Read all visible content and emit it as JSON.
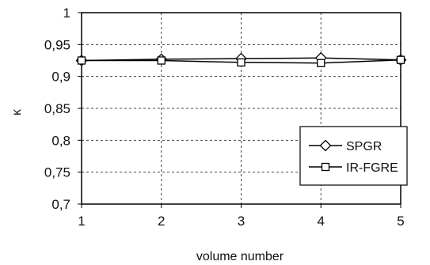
{
  "chart_data": {
    "type": "line",
    "x": [
      1,
      2,
      3,
      4,
      5
    ],
    "xlabel": "volume number",
    "ylabel": "κ",
    "xlim": [
      1,
      5
    ],
    "ylim": [
      0.7,
      1
    ],
    "x_ticks": [
      "1",
      "2",
      "3",
      "4",
      "5"
    ],
    "y_ticks": [
      "0,7",
      "0,75",
      "0,8",
      "0,85",
      "0,9",
      "0,95",
      "1"
    ],
    "grid": true,
    "legend_position": "right",
    "series": [
      {
        "name": "SPGR",
        "marker": "diamond",
        "values": [
          0.925,
          0.927,
          0.928,
          0.929,
          0.926
        ]
      },
      {
        "name": "IR-FGRE",
        "marker": "square",
        "values": [
          0.925,
          0.925,
          0.922,
          0.921,
          0.926
        ]
      }
    ]
  }
}
